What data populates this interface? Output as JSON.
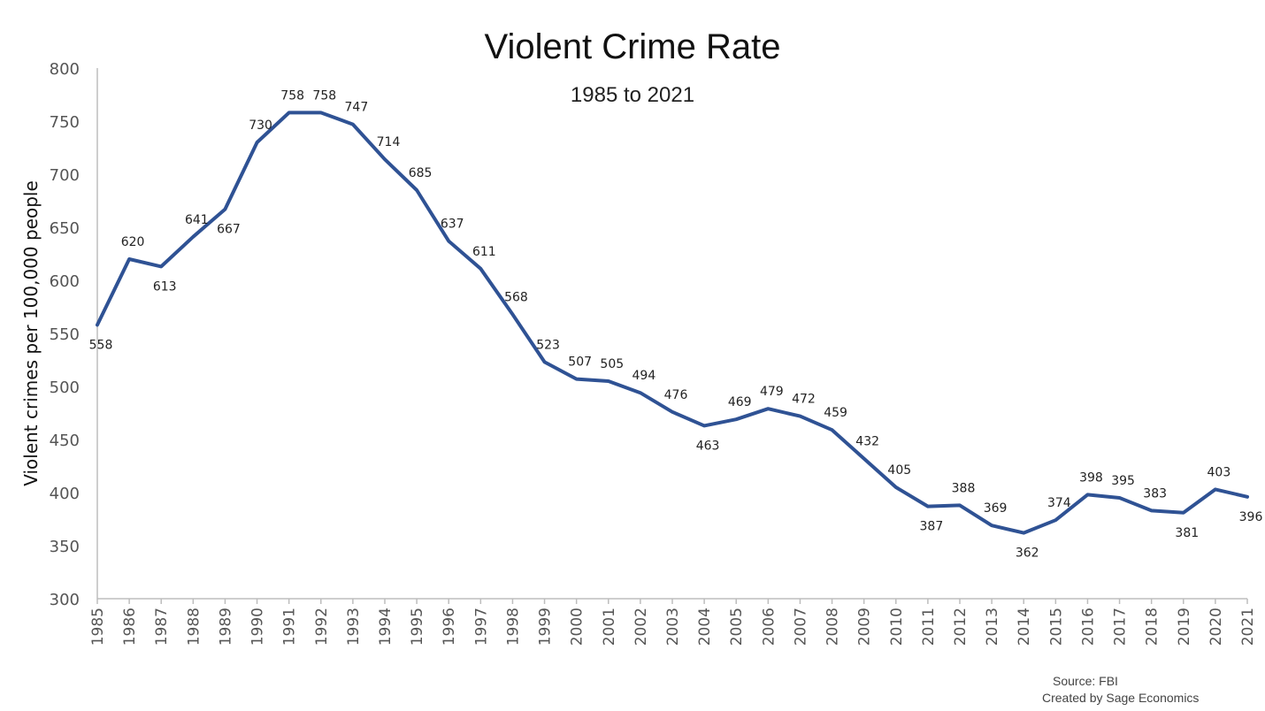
{
  "chart_data": {
    "type": "line",
    "title": "Violent Crime Rate",
    "subtitle": "1985 to 2021",
    "ylabel": "Violent crimes per 100,000 people",
    "xlabel": "",
    "ylim": [
      300,
      800
    ],
    "yticks": [
      "300",
      "350",
      "400",
      "450",
      "500",
      "550",
      "600",
      "650",
      "700",
      "750",
      "800"
    ],
    "grid": false,
    "x": [
      "1985",
      "1986",
      "1987",
      "1988",
      "1989",
      "1990",
      "1991",
      "1992",
      "1993",
      "1994",
      "1995",
      "1996",
      "1997",
      "1998",
      "1999",
      "2000",
      "2001",
      "2002",
      "2003",
      "2004",
      "2005",
      "2006",
      "2007",
      "2008",
      "2009",
      "2010",
      "2011",
      "2012",
      "2013",
      "2014",
      "2015",
      "2016",
      "2017",
      "2018",
      "2019",
      "2020",
      "2021"
    ],
    "series": [
      {
        "values": [
          558,
          620,
          613,
          641,
          667,
          730,
          758,
          758,
          747,
          714,
          685,
          637,
          611,
          568,
          523,
          507,
          505,
          494,
          476,
          463,
          469,
          479,
          472,
          459,
          432,
          405,
          387,
          388,
          369,
          362,
          374,
          398,
          395,
          383,
          381,
          403,
          396
        ],
        "color": "#2f5294"
      }
    ],
    "source_notes": [
      "Source: FBI",
      "Created by Sage Economics"
    ]
  }
}
